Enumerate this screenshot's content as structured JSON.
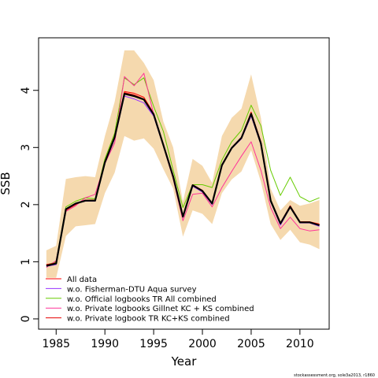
{
  "chart_data": {
    "type": "line",
    "title": "",
    "xlabel": "Year",
    "ylabel": "SSB",
    "xlim": [
      1983.2,
      2013.0
    ],
    "ylim": [
      -0.18,
      4.92
    ],
    "xticks": [
      1985,
      1990,
      1995,
      2000,
      2005,
      2010
    ],
    "yticks": [
      0,
      1,
      2,
      3,
      4
    ],
    "legend_position": "bottom-left",
    "x": [
      1984,
      1985,
      1986,
      1987,
      1988,
      1989,
      1990,
      1991,
      1992,
      1993,
      1994,
      1995,
      1996,
      1997,
      1998,
      1999,
      2000,
      2001,
      2002,
      2003,
      2004,
      2005,
      2006,
      2007,
      2008,
      2009,
      2010,
      2011,
      2012
    ],
    "band": {
      "color": "#f5d9ae",
      "upper": [
        1.2,
        1.28,
        2.45,
        2.48,
        2.5,
        2.48,
        3.2,
        3.8,
        4.7,
        4.7,
        4.48,
        4.18,
        3.45,
        3.0,
        2.05,
        2.8,
        2.68,
        2.38,
        3.2,
        3.52,
        3.68,
        4.28,
        3.52,
        2.28,
        1.9,
        2.08,
        1.98,
        2.02,
        2.08
      ],
      "lower": [
        0.72,
        0.72,
        1.45,
        1.62,
        1.64,
        1.66,
        2.2,
        2.56,
        3.2,
        3.12,
        3.16,
        2.98,
        2.62,
        2.28,
        1.44,
        1.9,
        1.84,
        1.66,
        2.2,
        2.44,
        2.58,
        2.95,
        2.4,
        1.66,
        1.38,
        1.56,
        1.34,
        1.3,
        1.22
      ]
    },
    "series": [
      {
        "name": "All data",
        "color": "#ff0000",
        "values": [
          0.95,
          0.98,
          1.9,
          2.0,
          2.08,
          2.08,
          2.75,
          3.2,
          3.98,
          3.95,
          3.88,
          3.6,
          3.05,
          2.5,
          1.8,
          2.35,
          2.25,
          2.02,
          2.7,
          3.0,
          3.18,
          3.62,
          3.1,
          2.08,
          1.68,
          1.98,
          1.7,
          1.7,
          1.66
        ]
      },
      {
        "name": "w.o. Fisherman-DTU Aqua survey",
        "color": "#9933ff",
        "values": [
          0.92,
          0.95,
          1.92,
          2.02,
          2.06,
          2.06,
          2.72,
          3.15,
          3.9,
          3.85,
          3.78,
          3.55,
          3.02,
          2.48,
          1.78,
          2.32,
          2.22,
          2.0,
          2.68,
          2.98,
          3.15,
          3.55,
          3.05,
          2.05,
          1.64,
          1.95,
          1.68,
          1.68,
          1.62
        ]
      },
      {
        "name": "w.o. Official logbooks TR All combined",
        "color": "#66cc00",
        "values": [
          0.94,
          1.0,
          1.96,
          2.06,
          2.12,
          2.1,
          2.8,
          3.25,
          4.22,
          4.1,
          4.22,
          3.72,
          3.28,
          2.6,
          1.95,
          2.35,
          2.35,
          2.3,
          2.78,
          3.1,
          3.3,
          3.74,
          3.38,
          2.6,
          2.16,
          2.48,
          2.14,
          2.05,
          2.12
        ]
      },
      {
        "name": "w.o. Private logbooks Gillnet KC + KS combined",
        "color": "#ff3399",
        "values": [
          0.9,
          1.02,
          1.88,
          1.98,
          2.12,
          2.18,
          2.72,
          3.08,
          4.24,
          4.08,
          4.3,
          3.58,
          3.02,
          2.45,
          1.72,
          2.18,
          2.2,
          1.96,
          2.3,
          2.58,
          2.85,
          3.1,
          2.6,
          1.95,
          1.58,
          1.78,
          1.58,
          1.54,
          1.56
        ]
      },
      {
        "name": "w.o. Private logbook TR KC+KS combined",
        "color": "#e60000",
        "values": [
          0.95,
          0.98,
          1.9,
          2.02,
          2.08,
          2.08,
          2.75,
          3.2,
          3.96,
          3.92,
          3.85,
          3.58,
          3.05,
          2.5,
          1.8,
          2.35,
          2.25,
          2.02,
          2.7,
          3.0,
          3.18,
          3.6,
          3.08,
          2.08,
          1.68,
          1.98,
          1.7,
          1.7,
          1.64
        ]
      },
      {
        "name": "",
        "color": "#000000",
        "width": 2.2,
        "values": [
          0.93,
          0.97,
          1.92,
          2.02,
          2.07,
          2.07,
          2.74,
          3.18,
          3.94,
          3.9,
          3.84,
          3.58,
          3.04,
          2.49,
          1.79,
          2.34,
          2.24,
          2.02,
          2.69,
          2.99,
          3.17,
          3.59,
          3.07,
          2.07,
          1.67,
          1.96,
          1.69,
          1.69,
          1.64
        ]
      }
    ]
  },
  "footer": "stockassessment.org, sole3a2013, r1860"
}
